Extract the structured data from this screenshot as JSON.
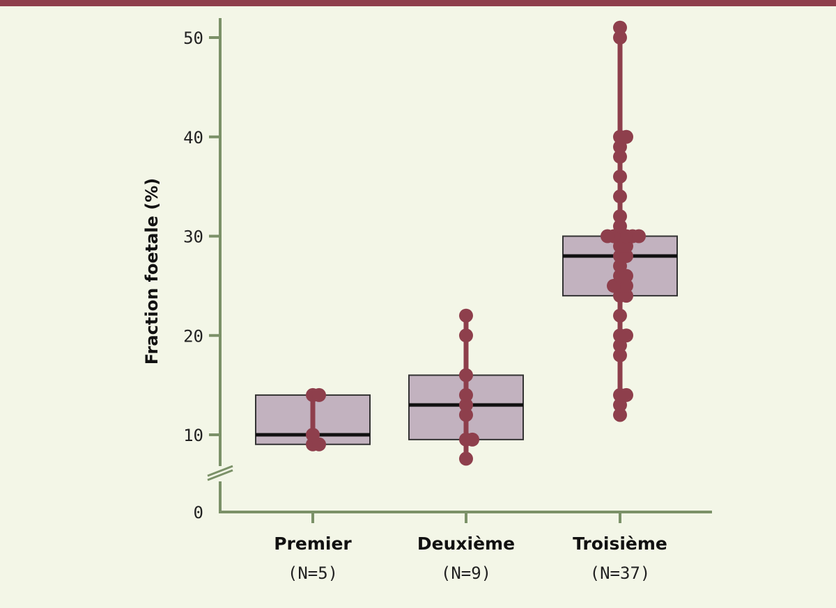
{
  "colors": {
    "background": "#f3f6e7",
    "top_bar": "#8e3f4c",
    "axis": "#7b9168",
    "box_fill": "#c2b2bf",
    "box_stroke": "#333333",
    "median": "#111111",
    "points": "#8e3f4c"
  },
  "chart_data": {
    "type": "box",
    "title": "",
    "ylabel": "Fraction foetale (%)",
    "xlabel": "",
    "ylim": [
      0,
      50
    ],
    "y_axis_break": true,
    "yticks": [
      0,
      10,
      20,
      30,
      40,
      50
    ],
    "grid": false,
    "categories": [
      {
        "name": "Premier",
        "n_label": "(N=5)"
      },
      {
        "name": "Deuxième",
        "n_label": "(N=9)"
      },
      {
        "name": "Troisième",
        "n_label": "(N=37)"
      }
    ],
    "boxes": [
      {
        "q1": 8,
        "median": 10,
        "q3": 14
      },
      {
        "q1": 9,
        "median": 13,
        "q3": 16
      },
      {
        "q1": 24,
        "median": 28,
        "q3": 30
      }
    ],
    "points": [
      [
        8,
        8,
        10,
        14,
        14
      ],
      [
        5,
        9,
        9,
        12,
        13,
        14,
        16,
        20,
        22
      ],
      [
        12,
        13,
        14,
        14,
        18,
        19,
        20,
        20,
        22,
        24,
        24,
        25,
        25,
        25,
        26,
        26,
        27,
        28,
        28,
        29,
        29,
        30,
        30,
        30,
        30,
        30,
        30,
        31,
        32,
        34,
        36,
        38,
        39,
        40,
        40,
        50,
        51
      ]
    ]
  }
}
